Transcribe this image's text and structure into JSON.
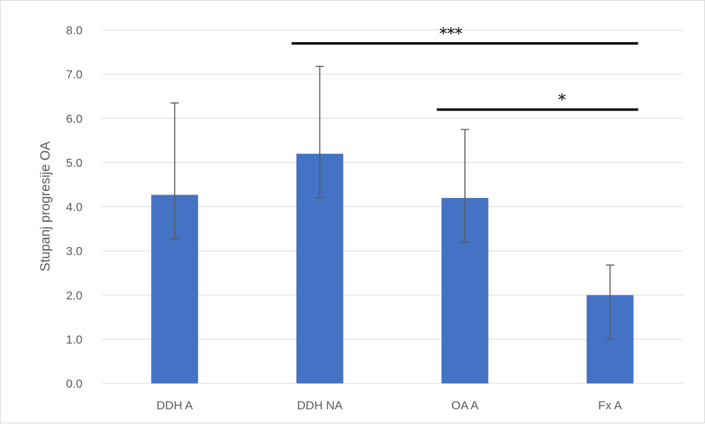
{
  "chart_data": {
    "type": "bar",
    "categories": [
      "DDH A",
      "DDH NA",
      "OA A",
      "Fx A"
    ],
    "values": [
      4.27,
      5.2,
      4.2,
      2.0
    ],
    "error_plus": [
      2.08,
      1.98,
      1.55,
      0.68
    ],
    "error_minus": [
      1.0,
      1.0,
      1.0,
      1.0
    ],
    "title": "",
    "xlabel": "",
    "ylabel": "Stupanj progresije OA",
    "ylim": [
      0,
      8
    ],
    "yticks": [
      "0.0",
      "1.0",
      "2.0",
      "3.0",
      "4.0",
      "5.0",
      "6.0",
      "7.0",
      "8.0"
    ],
    "grid": true,
    "legend": "none",
    "significance": [
      {
        "from": "DDH NA",
        "to": "Fx A",
        "label": "***",
        "level": 7.7
      },
      {
        "from": "OA A",
        "to": "Fx A",
        "label": "*",
        "level": 6.2
      }
    ],
    "colors": {
      "bar": "#4472c4",
      "grid": "#d9d9d9",
      "error_bar": "#595959",
      "significance_line": "#000000"
    }
  }
}
